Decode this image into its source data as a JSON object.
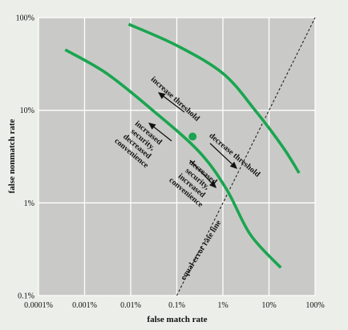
{
  "chart_data": {
    "type": "line",
    "xlabel": "false match rate",
    "ylabel": "false nonmatch rate",
    "x_scale": "log",
    "y_scale": "log",
    "xlim": [
      0.0001,
      100
    ],
    "ylim": [
      0.1,
      100
    ],
    "x_ticks": [
      {
        "value": 0.0001,
        "label": "0.0001%"
      },
      {
        "value": 0.001,
        "label": "0.001%"
      },
      {
        "value": 0.01,
        "label": "0.01%"
      },
      {
        "value": 0.1,
        "label": "0.1%"
      },
      {
        "value": 1,
        "label": "1%"
      },
      {
        "value": 10,
        "label": "10%"
      },
      {
        "value": 100,
        "label": "100%"
      }
    ],
    "y_ticks": [
      {
        "value": 0.1,
        "label": "0.1%"
      },
      {
        "value": 1,
        "label": "1%"
      },
      {
        "value": 10,
        "label": "10%"
      },
      {
        "value": 100,
        "label": "100%"
      }
    ],
    "grid": true,
    "series": [
      {
        "color": "#1aa550",
        "points": [
          [
            0.00038,
            45
          ],
          [
            0.003,
            25
          ],
          [
            0.03,
            10
          ],
          [
            0.3,
            3.6
          ],
          [
            1.2,
            1.4
          ],
          [
            4,
            0.45
          ],
          [
            18,
            0.2
          ]
        ]
      },
      {
        "color": "#1aa550",
        "points": [
          [
            0.009,
            85
          ],
          [
            0.1,
            50
          ],
          [
            1,
            25
          ],
          [
            5,
            10
          ],
          [
            20,
            4
          ],
          [
            45,
            2.1
          ]
        ]
      },
      {
        "name": "equal error rate line",
        "color": "#111111",
        "dashed": true,
        "points": [
          [
            0.1,
            0.1
          ],
          [
            100,
            100
          ]
        ]
      }
    ],
    "marker": {
      "x": 0.22,
      "y": 5.2,
      "color": "#1aa550"
    },
    "annotations": [
      {
        "id": "increase-threshold",
        "lines": [
          "increase threshold"
        ]
      },
      {
        "id": "decrease-threshold",
        "lines": [
          "decrease threshold"
        ]
      },
      {
        "id": "increased-security",
        "lines": [
          "increased",
          "security,",
          "decreased",
          "convenience"
        ]
      },
      {
        "id": "decreased-security",
        "lines": [
          "decreased",
          "security,",
          "increased",
          "convenience"
        ]
      },
      {
        "id": "eer-label",
        "lines": [
          "equal error rate line"
        ]
      }
    ]
  }
}
